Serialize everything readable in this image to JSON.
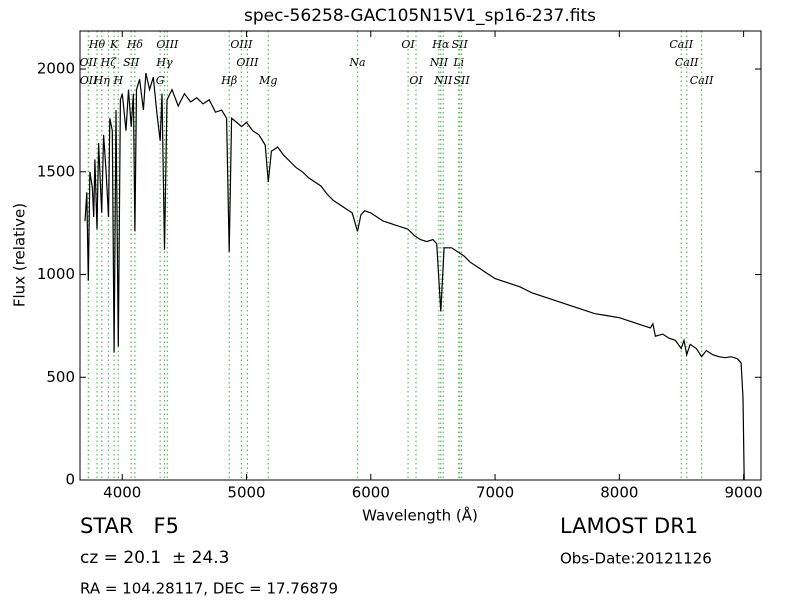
{
  "chart_data": {
    "type": "line",
    "title": "spec-56258-GAC105N15V1_sp16-237.fits",
    "xlabel": "Wavelength (Å)",
    "ylabel": "Flux (relative)",
    "xlim": [
      3660,
      9140
    ],
    "ylim": [
      0,
      2185
    ],
    "xticks": [
      4000,
      5000,
      6000,
      7000,
      8000,
      9000
    ],
    "yticks": [
      0,
      500,
      1000,
      1500,
      2000
    ],
    "x": [
      3700,
      3715,
      3727,
      3740,
      3760,
      3770,
      3780,
      3797,
      3810,
      3835,
      3850,
      3870,
      3889,
      3900,
      3920,
      3934,
      3950,
      3968,
      3985,
      4000,
      4030,
      4050,
      4072,
      4090,
      4102,
      4115,
      4140,
      4170,
      4190,
      4220,
      4250,
      4280,
      4305,
      4320,
      4340,
      4360,
      4400,
      4450,
      4500,
      4550,
      4600,
      4650,
      4700,
      4750,
      4800,
      4840,
      4861,
      4880,
      4920,
      4960,
      5000,
      5050,
      5100,
      5150,
      5175,
      5200,
      5250,
      5300,
      5350,
      5400,
      5450,
      5500,
      5550,
      5600,
      5650,
      5700,
      5750,
      5800,
      5850,
      5893,
      5920,
      5950,
      6000,
      6050,
      6100,
      6150,
      6200,
      6250,
      6300,
      6350,
      6400,
      6450,
      6500,
      6530,
      6563,
      6590,
      6650,
      6700,
      6750,
      6800,
      6850,
      6900,
      6950,
      7000,
      7100,
      7200,
      7300,
      7400,
      7500,
      7600,
      7700,
      7800,
      7900,
      8000,
      8100,
      8200,
      8250,
      8270,
      8290,
      8350,
      8400,
      8450,
      8498,
      8520,
      8542,
      8570,
      8620,
      8662,
      8700,
      8750,
      8800,
      8850,
      8900,
      8950,
      8980,
      8995,
      9005
    ],
    "series": [
      {
        "color": "#000000",
        "values": [
          1260,
          1400,
          970,
          1500,
          1420,
          1280,
          1560,
          1220,
          1640,
          1300,
          1680,
          1500,
          1280,
          1760,
          1700,
          620,
          1800,
          650,
          1850,
          1880,
          1700,
          1900,
          1720,
          1880,
          1210,
          1900,
          1950,
          1800,
          1980,
          1900,
          1960,
          1780,
          1650,
          1880,
          1120,
          1850,
          1900,
          1820,
          1880,
          1840,
          1860,
          1830,
          1850,
          1790,
          1800,
          1760,
          1110,
          1760,
          1740,
          1720,
          1740,
          1700,
          1680,
          1630,
          1450,
          1600,
          1620,
          1580,
          1550,
          1520,
          1500,
          1470,
          1450,
          1430,
          1390,
          1360,
          1340,
          1320,
          1300,
          1210,
          1290,
          1310,
          1300,
          1280,
          1260,
          1250,
          1240,
          1230,
          1220,
          1190,
          1170,
          1160,
          1170,
          1150,
          820,
          1130,
          1130,
          1110,
          1090,
          1060,
          1040,
          1020,
          1000,
          980,
          960,
          940,
          910,
          890,
          870,
          850,
          830,
          810,
          800,
          790,
          770,
          750,
          740,
          760,
          700,
          710,
          690,
          680,
          640,
          680,
          610,
          660,
          640,
          600,
          630,
          610,
          600,
          595,
          600,
          590,
          570,
          400,
          0
        ]
      }
    ],
    "lines_color": "#55bb55",
    "lines": [
      {
        "label": "Hθ",
        "x": 3797
      },
      {
        "label": "K",
        "x": 3934
      },
      {
        "label": "Hδ",
        "x": 4102
      },
      {
        "label": "OIII",
        "x": 4363
      },
      {
        "label": "OIII",
        "x": 4959
      },
      {
        "label": "OI",
        "x": 6300
      },
      {
        "label": "Hα",
        "x": 6563
      },
      {
        "label": "SII",
        "x": 6716
      },
      {
        "label": "CaII",
        "x": 8498
      },
      {
        "label": "OII",
        "x": 3727
      },
      {
        "label": "Hζ",
        "x": 3889
      },
      {
        "label": "SII",
        "x": 4072
      },
      {
        "label": "Hγ",
        "x": 4340
      },
      {
        "label": "OIII",
        "x": 5007
      },
      {
        "label": "Na",
        "x": 5893
      },
      {
        "label": "NII",
        "x": 6548
      },
      {
        "label": "Li",
        "x": 6708
      },
      {
        "label": "CaII",
        "x": 8542
      },
      {
        "label": "OII",
        "x": 3729
      },
      {
        "label": "Hη",
        "x": 3835
      },
      {
        "label": "H",
        "x": 3968
      },
      {
        "label": "G",
        "x": 4305
      },
      {
        "label": "Hβ",
        "x": 4861
      },
      {
        "label": "Mg",
        "x": 5175
      },
      {
        "label": "OI",
        "x": 6364
      },
      {
        "label": "NII",
        "x": 6583
      },
      {
        "label": "SII",
        "x": 6731
      },
      {
        "label": "CaII",
        "x": 8662
      }
    ],
    "info": {
      "class": "STAR   F5",
      "cz": "cz = 20.1  ± 24.3",
      "coords": "RA = 104.28117, DEC = 17.76879",
      "survey": "LAMOST DR1",
      "obs_date": "Obs-Date:20121126"
    }
  }
}
